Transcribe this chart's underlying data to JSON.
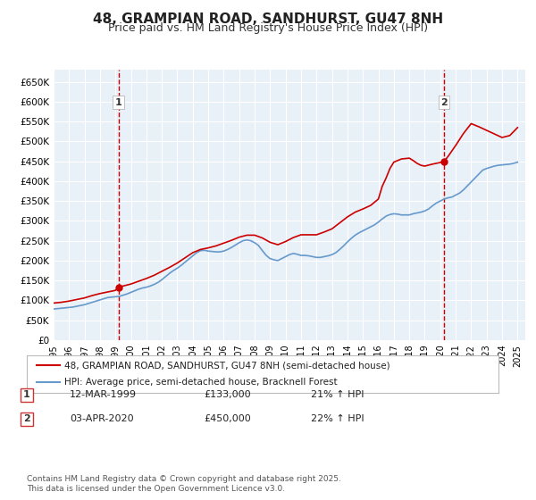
{
  "title": "48, GRAMPIAN ROAD, SANDHURST, GU47 8NH",
  "subtitle": "Price paid vs. HM Land Registry's House Price Index (HPI)",
  "title_fontsize": 11,
  "subtitle_fontsize": 9,
  "bg_color": "#ffffff",
  "plot_bg_color": "#e8f0f8",
  "grid_color": "#ffffff",
  "red_line_color": "#cc0000",
  "blue_line_color": "#6699cc",
  "ylabel_ticks": [
    "£0",
    "£50K",
    "£100K",
    "£150K",
    "£200K",
    "£250K",
    "£300K",
    "£350K",
    "£400K",
    "£450K",
    "£500K",
    "£550K",
    "£600K",
    "£650K"
  ],
  "ytick_values": [
    0,
    50000,
    100000,
    150000,
    200000,
    250000,
    300000,
    350000,
    400000,
    450000,
    500000,
    550000,
    600000,
    650000
  ],
  "ylim": [
    0,
    680000
  ],
  "xlim_start": 1995.0,
  "xlim_end": 2025.5,
  "xtick_years": [
    1995,
    1996,
    1997,
    1998,
    1999,
    2000,
    2001,
    2002,
    2003,
    2004,
    2005,
    2006,
    2007,
    2008,
    2009,
    2010,
    2011,
    2012,
    2013,
    2014,
    2015,
    2016,
    2017,
    2018,
    2019,
    2020,
    2021,
    2022,
    2023,
    2024,
    2025
  ],
  "marker1_x": 1999.19,
  "marker1_y": 133000,
  "marker2_x": 2020.25,
  "marker2_y": 450000,
  "vline1_x": 1999.19,
  "vline2_x": 2020.25,
  "legend_label_red": "48, GRAMPIAN ROAD, SANDHURST, GU47 8NH (semi-detached house)",
  "legend_label_blue": "HPI: Average price, semi-detached house, Bracknell Forest",
  "footnote": "Contains HM Land Registry data © Crown copyright and database right 2025.\nThis data is licensed under the Open Government Licence v3.0.",
  "table_rows": [
    {
      "num": "1",
      "date": "12-MAR-1999",
      "price": "£133,000",
      "change": "21% ↑ HPI"
    },
    {
      "num": "2",
      "date": "03-APR-2020",
      "price": "£450,000",
      "change": "22% ↑ HPI"
    }
  ],
  "hpi_data_x": [
    1995.0,
    1995.25,
    1995.5,
    1995.75,
    1996.0,
    1996.25,
    1996.5,
    1996.75,
    1997.0,
    1997.25,
    1997.5,
    1997.75,
    1998.0,
    1998.25,
    1998.5,
    1998.75,
    1999.0,
    1999.25,
    1999.5,
    1999.75,
    2000.0,
    2000.25,
    2000.5,
    2000.75,
    2001.0,
    2001.25,
    2001.5,
    2001.75,
    2002.0,
    2002.25,
    2002.5,
    2002.75,
    2003.0,
    2003.25,
    2003.5,
    2003.75,
    2004.0,
    2004.25,
    2004.5,
    2004.75,
    2005.0,
    2005.25,
    2005.5,
    2005.75,
    2006.0,
    2006.25,
    2006.5,
    2006.75,
    2007.0,
    2007.25,
    2007.5,
    2007.75,
    2008.0,
    2008.25,
    2008.5,
    2008.75,
    2009.0,
    2009.25,
    2009.5,
    2009.75,
    2010.0,
    2010.25,
    2010.5,
    2010.75,
    2011.0,
    2011.25,
    2011.5,
    2011.75,
    2012.0,
    2012.25,
    2012.5,
    2012.75,
    2013.0,
    2013.25,
    2013.5,
    2013.75,
    2014.0,
    2014.25,
    2014.5,
    2014.75,
    2015.0,
    2015.25,
    2015.5,
    2015.75,
    2016.0,
    2016.25,
    2016.5,
    2016.75,
    2017.0,
    2017.25,
    2017.5,
    2017.75,
    2018.0,
    2018.25,
    2018.5,
    2018.75,
    2019.0,
    2019.25,
    2019.5,
    2019.75,
    2020.0,
    2020.25,
    2020.5,
    2020.75,
    2021.0,
    2021.25,
    2021.5,
    2021.75,
    2022.0,
    2022.25,
    2022.5,
    2022.75,
    2023.0,
    2023.25,
    2023.5,
    2023.75,
    2024.0,
    2024.25,
    2024.5,
    2024.75,
    2025.0
  ],
  "hpi_data_y": [
    78000,
    79000,
    80000,
    81000,
    82000,
    83000,
    85000,
    87000,
    89000,
    92000,
    95000,
    98000,
    101000,
    104000,
    107000,
    108000,
    109000,
    110000,
    113000,
    116000,
    120000,
    124000,
    128000,
    131000,
    133000,
    136000,
    140000,
    145000,
    152000,
    160000,
    168000,
    175000,
    181000,
    188000,
    196000,
    204000,
    212000,
    220000,
    225000,
    226000,
    224000,
    223000,
    222000,
    222000,
    224000,
    228000,
    233000,
    239000,
    245000,
    250000,
    252000,
    250000,
    245000,
    238000,
    225000,
    213000,
    205000,
    202000,
    200000,
    205000,
    210000,
    215000,
    218000,
    216000,
    213000,
    213000,
    212000,
    210000,
    208000,
    208000,
    210000,
    212000,
    215000,
    220000,
    228000,
    237000,
    247000,
    256000,
    264000,
    270000,
    275000,
    280000,
    285000,
    290000,
    297000,
    305000,
    312000,
    316000,
    318000,
    317000,
    315000,
    315000,
    315000,
    318000,
    320000,
    322000,
    325000,
    330000,
    338000,
    345000,
    350000,
    355000,
    358000,
    360000,
    365000,
    370000,
    378000,
    388000,
    398000,
    408000,
    418000,
    428000,
    432000,
    435000,
    438000,
    440000,
    441000,
    442000,
    443000,
    445000,
    448000
  ],
  "price_data_x": [
    1995.0,
    1995.5,
    1996.0,
    1996.5,
    1997.0,
    1997.5,
    1998.0,
    1998.5,
    1999.0,
    1999.19,
    1999.5,
    2000.0,
    2000.5,
    2001.0,
    2001.5,
    2002.0,
    2002.5,
    2003.0,
    2003.5,
    2004.0,
    2004.5,
    2005.0,
    2005.5,
    2006.0,
    2006.5,
    2007.0,
    2007.5,
    2008.0,
    2008.5,
    2009.0,
    2009.5,
    2010.0,
    2010.5,
    2011.0,
    2011.5,
    2012.0,
    2012.5,
    2013.0,
    2013.5,
    2014.0,
    2014.5,
    2015.0,
    2015.5,
    2016.0,
    2016.25,
    2016.5,
    2016.75,
    2017.0,
    2017.5,
    2018.0,
    2018.25,
    2018.5,
    2018.75,
    2019.0,
    2019.5,
    2020.0,
    2020.25,
    2020.5,
    2021.0,
    2021.5,
    2022.0,
    2022.5,
    2023.0,
    2023.5,
    2024.0,
    2024.5,
    2025.0
  ],
  "price_data_y": [
    93000,
    95000,
    98000,
    102000,
    106000,
    112000,
    117000,
    121000,
    125000,
    133000,
    136000,
    141000,
    148000,
    155000,
    163000,
    173000,
    183000,
    194000,
    207000,
    220000,
    228000,
    232000,
    237000,
    244000,
    251000,
    259000,
    264000,
    264000,
    257000,
    246000,
    240000,
    248000,
    258000,
    265000,
    265000,
    265000,
    272000,
    280000,
    295000,
    310000,
    322000,
    330000,
    339000,
    355000,
    387000,
    408000,
    432000,
    448000,
    456000,
    458000,
    452000,
    445000,
    440000,
    438000,
    443000,
    447000,
    450000,
    462000,
    490000,
    520000,
    545000,
    537000,
    528000,
    519000,
    510000,
    515000,
    535000
  ]
}
